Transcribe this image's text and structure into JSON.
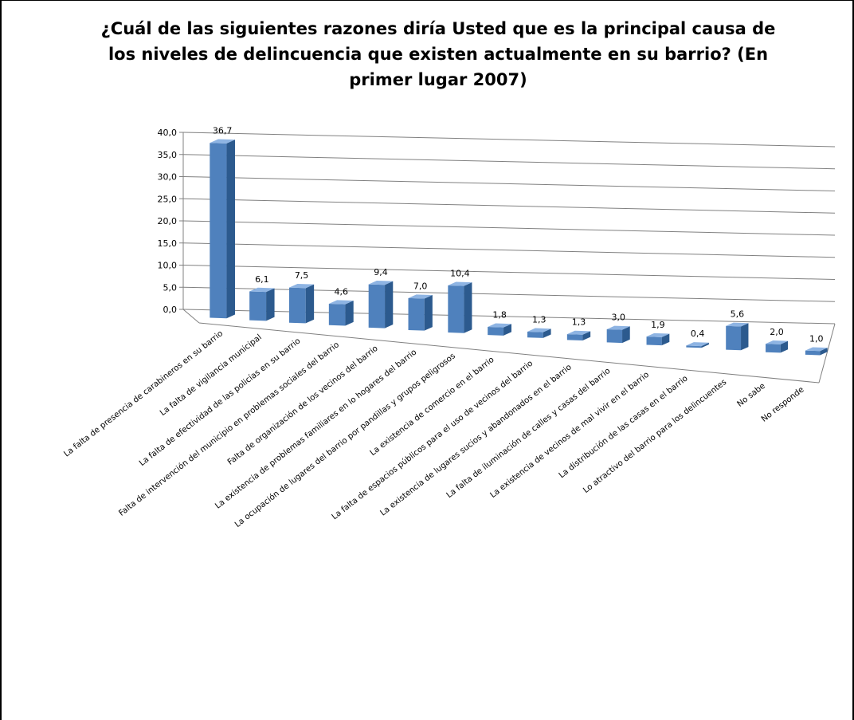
{
  "chart_data": {
    "type": "bar",
    "title": "¿Cuál de las siguientes razones diría Usted que es la principal causa de los niveles de delincuencia que existen actualmente en su barrio? (En primer lugar 2007)",
    "categories": [
      "La falta de presencia de carabineros en su barrio",
      "La falta de vigilancia municipal",
      "La falta de efectividad de las policías en su barrio",
      "Falta de intervención del municipio en problemas sociales del barrio",
      "Falta de organización de los vecinos del barrio",
      "La existencia de problemas familiares en lo hogares del barrio",
      "La ocupación de lugares del barrio por pandillas y grupos peligrosos",
      "La existencia de comercio en el barrio",
      "La falta de espacios públicos para el uso de vecinos del barrio",
      "La existencia de lugares sucios y abandonados en el barrio",
      "La falta de iluminación de calles y casas del barrio",
      "La existencia de vecinos de mal vivir en el barrio",
      "La distribución de las casas en el barrio",
      "Lo atractivo del barrio para los delincuentes",
      "No sabe",
      "No responde"
    ],
    "values": [
      36.7,
      6.1,
      7.5,
      4.6,
      9.4,
      7.0,
      10.4,
      1.8,
      1.3,
      1.3,
      3.0,
      1.9,
      0.4,
      5.6,
      2.0,
      1.0
    ],
    "data_labels": [
      "36,7",
      "6,1",
      "7,5",
      "4,6",
      "9,4",
      "7,0",
      "10,4",
      "1,8",
      "1,3",
      "1,3",
      "3,0",
      "1,9",
      "0,4",
      "5,6",
      "2,0",
      "1,0"
    ],
    "y_ticks": [
      "0,0",
      "5,0",
      "10,0",
      "15,0",
      "20,0",
      "25,0",
      "30,0",
      "35,0",
      "40,0"
    ],
    "ylim": [
      0,
      40
    ],
    "grid": true,
    "legend": "none",
    "colors": {
      "bar_front": "#4f81bd",
      "bar_side": "#2c5a8e",
      "bar_top": "#8eb4e3",
      "grid": "#808080"
    }
  }
}
